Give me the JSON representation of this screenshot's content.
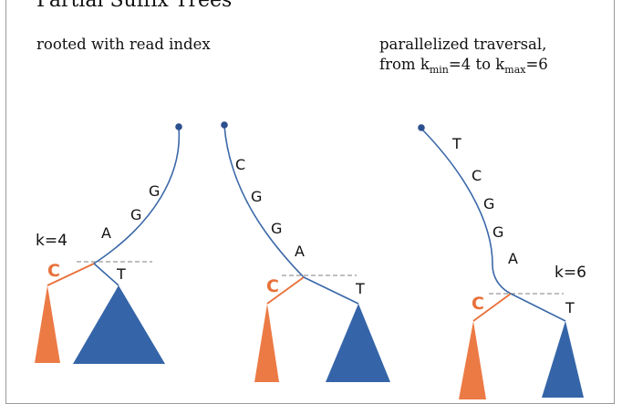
{
  "title": "Partial Suffix Trees",
  "subtitle_left": "rooted with read index",
  "subtitle_right": {
    "line1": "parallelized traversal,",
    "from": "from k",
    "kmin_sub": "min",
    "kmin_value": "=4 to k",
    "kmax_sub": "max",
    "kmax_value": "=6"
  },
  "colors": {
    "edge": "#3a68a8",
    "node": "#2c4f8f",
    "branch_c": "#e8713a",
    "subtree_c": "#ec7a45",
    "subtree_t": "#3565a8",
    "cut_line": "#999999"
  },
  "trees": [
    {
      "path_labels": [
        "G",
        "G",
        "A"
      ],
      "c_label": "C",
      "t_label": "T",
      "k_label": "k=4"
    },
    {
      "path_labels": [
        "C",
        "G",
        "G",
        "A"
      ],
      "c_label": "C",
      "t_label": "T"
    },
    {
      "path_labels": [
        "T",
        "C",
        "G",
        "G",
        "A"
      ],
      "c_label": "C",
      "t_label": "T",
      "k_label": "k=6"
    }
  ]
}
